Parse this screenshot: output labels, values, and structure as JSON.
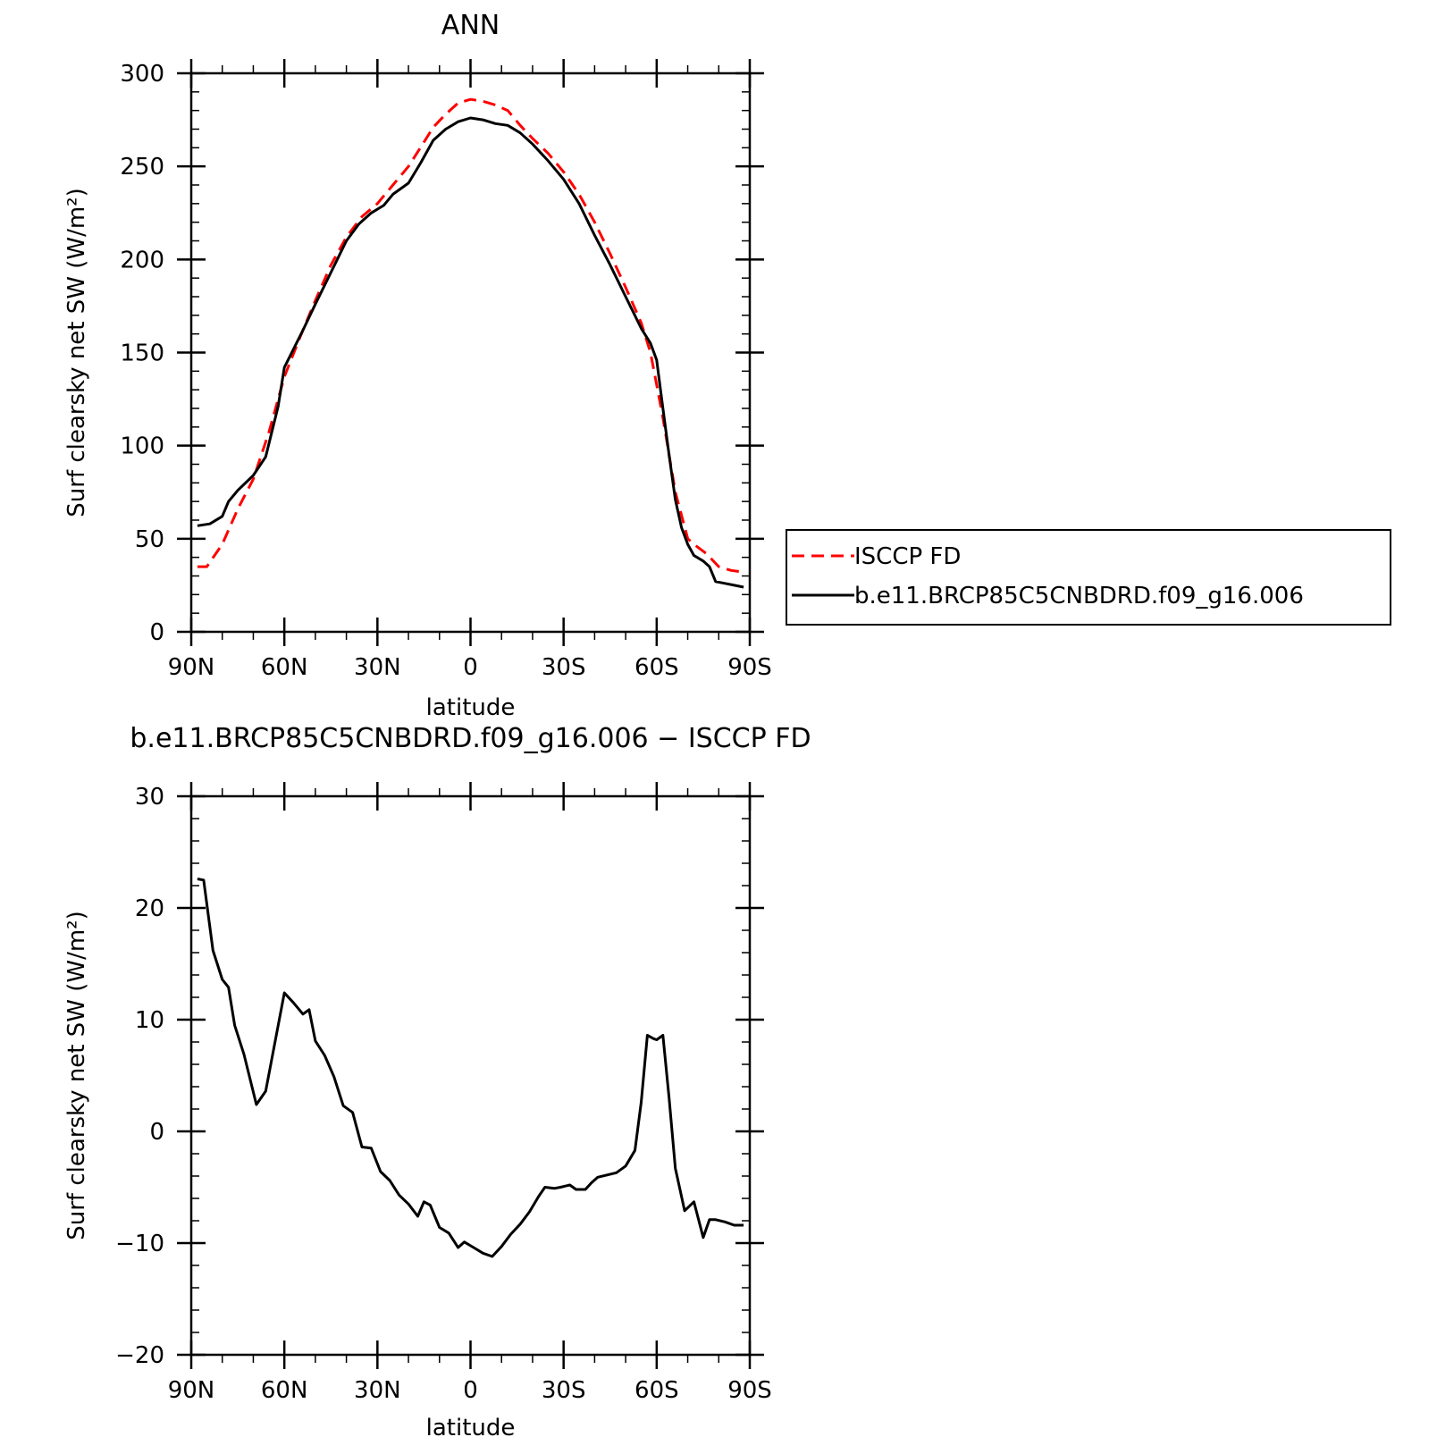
{
  "chart_data": [
    {
      "type": "line",
      "title": "ANN",
      "xlabel": "latitude",
      "ylabel": "Surf clearsky net SW (W/m²)",
      "xlim": [
        -90,
        90
      ],
      "ylim": [
        0,
        300
      ],
      "x_ticks": [
        -90,
        -60,
        -30,
        0,
        30,
        60,
        90
      ],
      "x_tick_labels": [
        "90N",
        "60N",
        "30N",
        "0",
        "30S",
        "60S",
        "90S"
      ],
      "y_ticks": [
        0,
        50,
        100,
        150,
        200,
        250,
        300
      ],
      "y_tick_labels": [
        "0",
        "50",
        "100",
        "150",
        "200",
        "250",
        "300"
      ],
      "legend_position": "right",
      "series": [
        {
          "name": "ISCCP FD",
          "color": "#ff0000",
          "dash": "dashed",
          "x": [
            -88,
            -85,
            -80,
            -75,
            -70,
            -65,
            -60,
            -55,
            -50,
            -45,
            -40,
            -35,
            -30,
            -25,
            -20,
            -15,
            -12,
            -8,
            -4,
            0,
            4,
            8,
            12,
            16,
            20,
            25,
            30,
            35,
            40,
            45,
            50,
            55,
            58,
            62,
            66,
            70,
            72,
            76,
            80,
            84,
            88
          ],
          "values": [
            35,
            35,
            47,
            66,
            82,
            107,
            137,
            158,
            178,
            197,
            212,
            223,
            230,
            240,
            250,
            263,
            271,
            278,
            284,
            286,
            285,
            283,
            280,
            272,
            265,
            257,
            247,
            235,
            220,
            203,
            185,
            166,
            150,
            115,
            75,
            50,
            47,
            42,
            35,
            33,
            32
          ]
        },
        {
          "name": "b.e11.BRCP85C5CNBDRD.f09_g16.006",
          "color": "#000000",
          "dash": "solid",
          "x": [
            -88,
            -84,
            -80,
            -78,
            -75,
            -70,
            -66,
            -62,
            -60,
            -57,
            -54,
            -50,
            -45,
            -40,
            -36,
            -32,
            -28,
            -25,
            -20,
            -16,
            -12,
            -8,
            -4,
            0,
            4,
            8,
            12,
            16,
            20,
            25,
            30,
            35,
            40,
            45,
            50,
            55,
            58,
            60,
            62,
            64,
            66,
            68,
            70,
            72,
            75,
            77,
            79,
            82,
            85,
            88
          ],
          "values": [
            57,
            58,
            62,
            70,
            76,
            84,
            94,
            121,
            142,
            152,
            162,
            176,
            193,
            210,
            219,
            225,
            229,
            235,
            241,
            252,
            264,
            270,
            274,
            276,
            275,
            273,
            272,
            268,
            262,
            253,
            243,
            230,
            213,
            197,
            180,
            163,
            155,
            146,
            120,
            95,
            71,
            56,
            47,
            41,
            38,
            35,
            27,
            26,
            25,
            24
          ]
        }
      ]
    },
    {
      "type": "line",
      "title": "b.e11.BRCP85C5CNBDRD.f09_g16.006 − ISCCP FD",
      "xlabel": "latitude",
      "ylabel": "Surf clearsky net SW (W/m²)",
      "xlim": [
        -90,
        90
      ],
      "ylim": [
        -20,
        30
      ],
      "x_ticks": [
        -90,
        -60,
        -30,
        0,
        30,
        60,
        90
      ],
      "x_tick_labels": [
        "90N",
        "60N",
        "30N",
        "0",
        "30S",
        "60S",
        "90S"
      ],
      "y_ticks": [
        -20,
        -10,
        0,
        10,
        20,
        30
      ],
      "y_tick_labels": [
        "−20",
        "−10",
        "0",
        "10",
        "20",
        "30"
      ],
      "series": [
        {
          "name": "b.e11.BRCP85C5CNBDRD.f09_g16.006 − ISCCP FD",
          "color": "#000000",
          "dash": "solid",
          "x": [
            -88,
            -86,
            -83,
            -80,
            -78,
            -76,
            -73,
            -69,
            -66,
            -60,
            -57,
            -54,
            -52,
            -50,
            -47,
            -44,
            -41,
            -38,
            -35,
            -32,
            -29,
            -26,
            -23,
            -20,
            -17,
            -15,
            -13,
            -10,
            -7,
            -4,
            -2,
            1,
            4,
            7,
            10,
            13,
            16,
            19,
            22,
            24,
            27,
            29,
            32,
            34,
            37,
            39,
            41,
            44,
            47,
            50,
            53,
            55,
            57,
            59,
            60,
            62,
            64,
            66,
            69,
            72,
            75,
            77,
            79,
            82,
            85,
            88
          ],
          "values": [
            22.6,
            22.5,
            16.2,
            13.6,
            12.9,
            9.5,
            6.9,
            2.4,
            3.6,
            12.4,
            11.5,
            10.5,
            10.9,
            8.1,
            6.8,
            4.9,
            2.3,
            1.7,
            -1.4,
            -1.5,
            -3.6,
            -4.4,
            -5.7,
            -6.5,
            -7.6,
            -6.3,
            -6.6,
            -8.6,
            -9.1,
            -10.4,
            -9.9,
            -10.4,
            -10.9,
            -11.2,
            -10.3,
            -9.2,
            -8.3,
            -7.2,
            -5.8,
            -5.0,
            -5.1,
            -5.0,
            -4.8,
            -5.2,
            -5.2,
            -4.6,
            -4.1,
            -3.9,
            -3.7,
            -3.1,
            -1.7,
            2.6,
            8.6,
            8.3,
            8.2,
            8.6,
            3.0,
            -3.3,
            -7.1,
            -6.3,
            -9.5,
            -7.9,
            -7.9,
            -8.1,
            -8.4,
            -8.4
          ]
        }
      ]
    }
  ]
}
